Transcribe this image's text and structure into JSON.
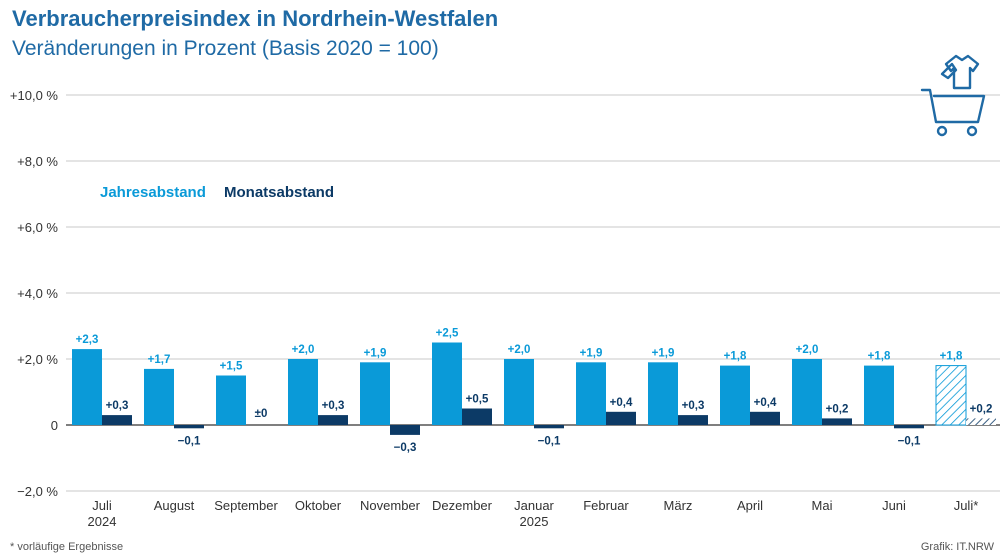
{
  "header": {
    "title": "Verbraucherpreisindex in Nordrhein-Westfalen",
    "subtitle": "Veränderungen in Prozent (Basis 2020 = 100)"
  },
  "footer": {
    "footnote": "*  vorläufige Ergebnisse",
    "credit": "Grafik: IT.NRW"
  },
  "icons": {
    "illustration": "shopping-cart-with-shirt-icon"
  },
  "colors": {
    "annual": "#0a9ad8",
    "monthly": "#0c3a66",
    "title": "#1f6aa5",
    "grid": "#c8c8c8",
    "text": "#333333"
  },
  "chart_data": {
    "type": "bar",
    "categories": [
      "Juli\n2024",
      "August",
      "September",
      "Oktober",
      "November",
      "Dezember",
      "Januar\n2025",
      "Februar",
      "März",
      "April",
      "Mai",
      "Juni",
      "Juli*"
    ],
    "series": [
      {
        "name": "Jahresabstand",
        "values": [
          2.3,
          1.7,
          1.5,
          2.0,
          1.9,
          2.5,
          2.0,
          1.9,
          1.9,
          1.8,
          2.0,
          1.8,
          1.8
        ],
        "labels": [
          "+2,3",
          "+1,7",
          "+1,5",
          "+2,0",
          "+1,9",
          "+2,5",
          "+2,0",
          "+1,9",
          "+1,9",
          "+1,8",
          "+2,0",
          "+1,8",
          "+1,8"
        ]
      },
      {
        "name": "Monatsabstand",
        "values": [
          0.3,
          -0.1,
          0.0,
          0.3,
          -0.3,
          0.5,
          -0.1,
          0.4,
          0.3,
          0.4,
          0.2,
          -0.1,
          0.2
        ],
        "labels": [
          "+0,3",
          "−0,1",
          "±0",
          "+0,3",
          "−0,3",
          "+0,5",
          "−0,1",
          "+0,4",
          "+0,3",
          "+0,4",
          "+0,2",
          "−0,1",
          "+0,2"
        ]
      }
    ],
    "preliminary_index": 12,
    "yticks": [
      -2,
      0,
      2,
      4,
      6,
      8,
      10
    ],
    "ytick_labels": [
      "−2,0 %",
      "0",
      "+2,0 %",
      "+4,0 %",
      "+6,0 %",
      "+8,0 %",
      "+10,0 %"
    ],
    "ylim": [
      -2,
      10
    ],
    "grid": true,
    "legend_position": "top-left"
  }
}
